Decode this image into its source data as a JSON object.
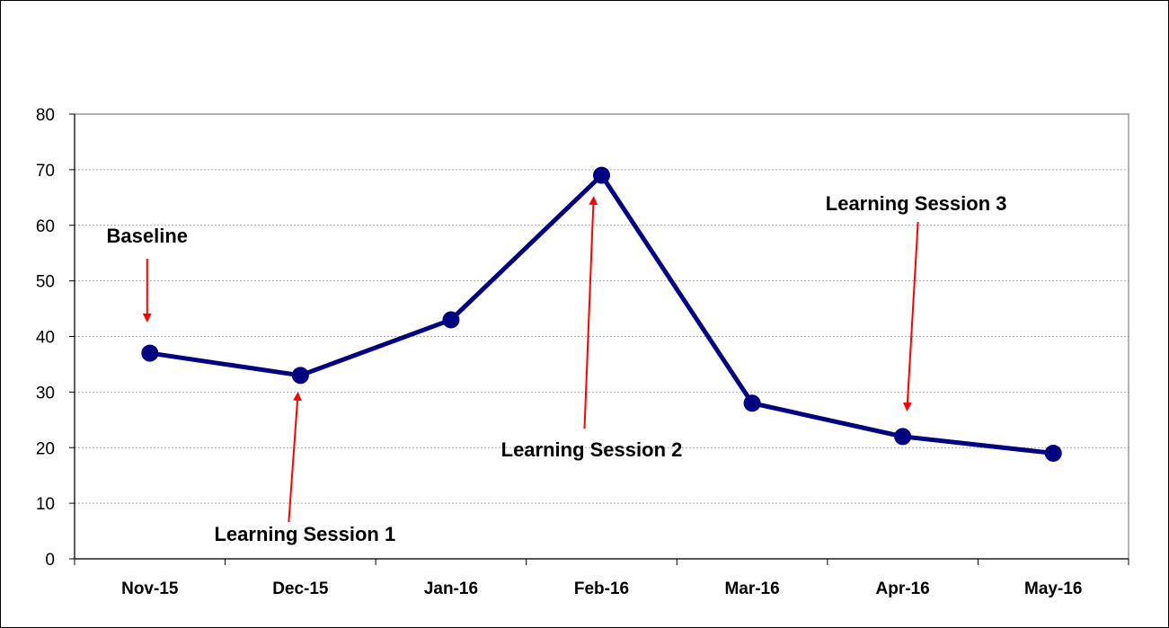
{
  "chart_data": {
    "type": "line",
    "title": "",
    "xlabel": "",
    "ylabel": "",
    "categories": [
      "Nov-15",
      "Dec-15",
      "Jan-16",
      "Feb-16",
      "Mar-16",
      "Apr-16",
      "May-16"
    ],
    "series": [
      {
        "values": [
          37,
          33,
          43,
          69,
          28,
          22,
          19
        ],
        "color": "#000080"
      }
    ],
    "ylim": [
      0,
      80
    ],
    "yticks": [
      0,
      10,
      20,
      30,
      40,
      50,
      60,
      70,
      80
    ],
    "grid": "horizontal dotted",
    "legend": "none",
    "annotations": [
      {
        "text": "Baseline",
        "target_category": "Nov-15",
        "arrow_color": "#ff0000"
      },
      {
        "text": "Learning Session 1",
        "target_category": "Dec-15",
        "arrow_color": "#ff0000"
      },
      {
        "text": "Learning Session 2",
        "target_category": "Feb-16",
        "arrow_color": "#ff0000"
      },
      {
        "text": "Learning Session 3",
        "target_category": "Apr-16",
        "arrow_color": "#ff0000"
      }
    ]
  }
}
